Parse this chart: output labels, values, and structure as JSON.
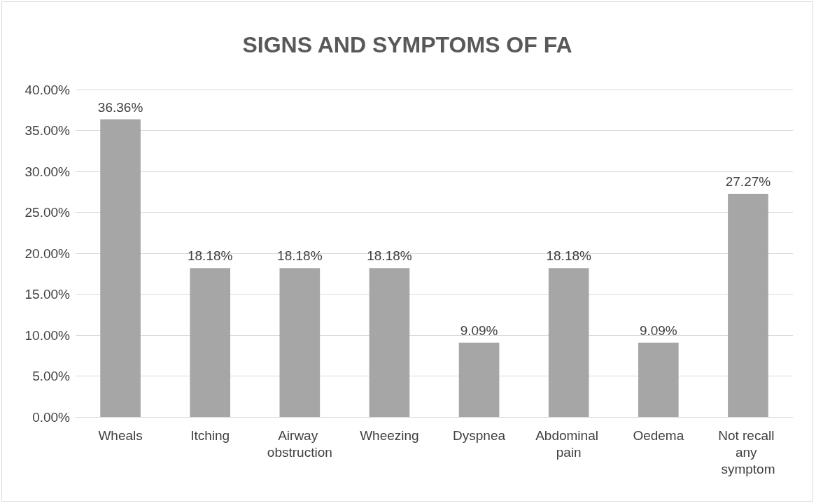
{
  "chart_data": {
    "type": "bar",
    "title": "SIGNS AND SYMPTOMS OF FA",
    "categories": [
      "Wheals",
      "Itching",
      "Airway obstruction",
      "Wheezing",
      "Dyspnea",
      "Abdominal pain",
      "Oedema",
      "Not recall any symptom"
    ],
    "values": [
      36.36,
      18.18,
      18.18,
      18.18,
      9.09,
      18.18,
      9.09,
      27.27
    ],
    "value_labels": [
      "36.36%",
      "18.18%",
      "18.18%",
      "18.18%",
      "9.09%",
      "18.18%",
      "9.09%",
      "27.27%"
    ],
    "color": "#a6a6a6",
    "ylim": [
      0,
      40
    ],
    "yticks": [
      {
        "value": 0,
        "label": "0.00%"
      },
      {
        "value": 5,
        "label": "5.00%"
      },
      {
        "value": 10,
        "label": "10.00%"
      },
      {
        "value": 15,
        "label": "15.00%"
      },
      {
        "value": 20,
        "label": "20.00%"
      },
      {
        "value": 25,
        "label": "25.00%"
      },
      {
        "value": 30,
        "label": "30.00%"
      },
      {
        "value": 35,
        "label": "35.00%"
      },
      {
        "value": 40,
        "label": "40.00%"
      }
    ],
    "grid": "y"
  }
}
